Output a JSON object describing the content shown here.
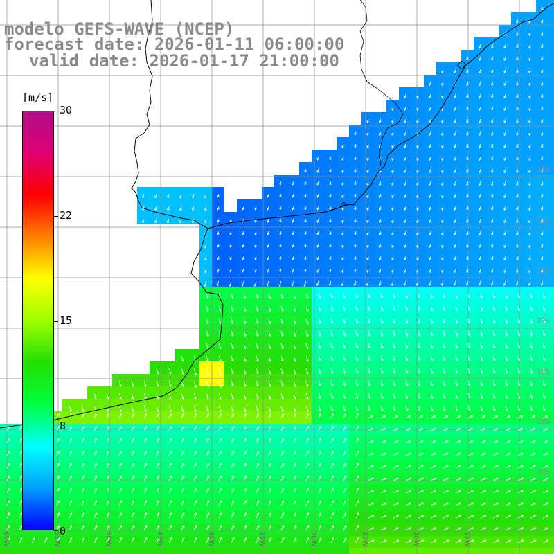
{
  "title_lines": [
    "modelo GEFS-WAVE (NCEP)",
    "forecast date: 2026-01-11 06:00:00",
    "valid date: 2026-01-17 21:00:00"
  ],
  "colorbar": {
    "units": "[m/s]",
    "ticks": [
      "30",
      "22",
      "15",
      "8",
      "0"
    ],
    "range": [
      0,
      30
    ],
    "colors": [
      "#0000ff",
      "#00a0ff",
      "#00ffff",
      "#00ff40",
      "#20e000",
      "#a0ff00",
      "#ffff00",
      "#ff8000",
      "#ff0000",
      "#e00070",
      "#b0108a"
    ]
  },
  "lon_labels": [
    "60W",
    "55W",
    "50W",
    "45W",
    "40W",
    "35W",
    "30W",
    "25W",
    "20W",
    "15W"
  ],
  "lat_labels": [
    "25S",
    "30S",
    "35S",
    "37S",
    "38S",
    "39S",
    "40S"
  ],
  "colors": {
    "land": "#ffffff",
    "grid": "#8c8c8c",
    "coast": "#000000",
    "vectors": "#ffffff",
    "title": "#8a8a8a"
  }
}
